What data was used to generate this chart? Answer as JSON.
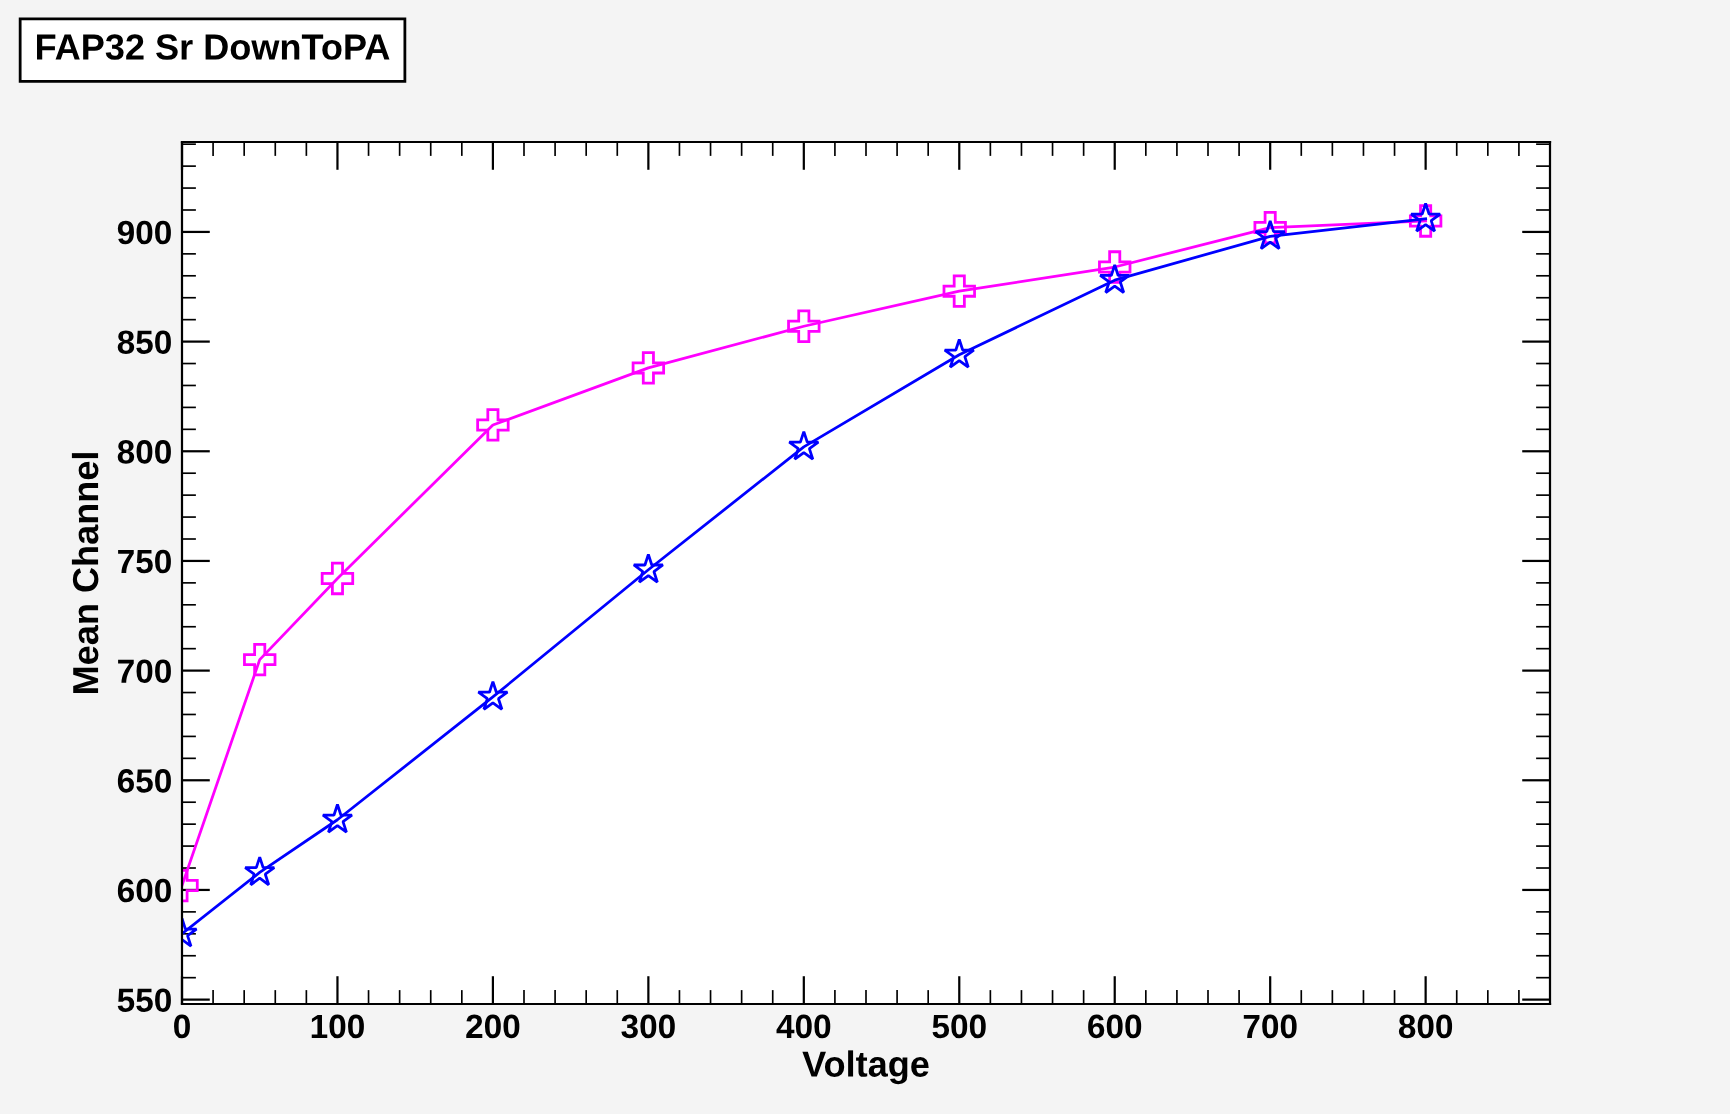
{
  "chart_data": {
    "type": "line",
    "title": "FAP32 Sr DownToPA",
    "xlabel": "Voltage",
    "ylabel": "Mean Channel",
    "x": [
      0,
      50,
      100,
      200,
      300,
      400,
      500,
      600,
      700,
      800
    ],
    "series": [
      {
        "color": "#ff00ff",
        "marker": "cross",
        "values": [
          602,
          705,
          742,
          812,
          838,
          857,
          873,
          884,
          902,
          905
        ]
      },
      {
        "color": "#0000ff",
        "marker": "star",
        "values": [
          580,
          608,
          632,
          688,
          746,
          802,
          844,
          878,
          898,
          906
        ]
      }
    ],
    "xlim": [
      0,
      880
    ],
    "ylim": [
      548,
      941
    ],
    "xticks": [
      0,
      100,
      200,
      300,
      400,
      500,
      600,
      700,
      800
    ],
    "yticks": [
      550,
      600,
      650,
      700,
      750,
      800,
      850,
      900
    ],
    "grid": false,
    "legend": false
  }
}
